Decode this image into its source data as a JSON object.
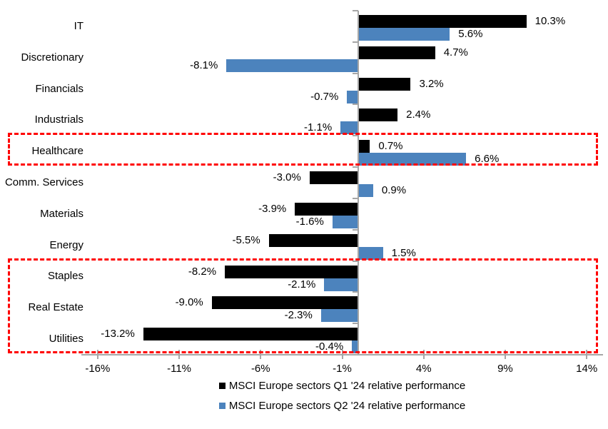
{
  "chart_data": {
    "type": "bar",
    "orientation": "horizontal",
    "title": "",
    "categories": [
      "IT",
      "Discretionary",
      "Financials",
      "Industrials",
      "Healthcare",
      "Comm. Services",
      "Materials",
      "Energy",
      "Staples",
      "Real Estate",
      "Utilities"
    ],
    "series": [
      {
        "name": "MSCI Europe sectors Q1 '24 relative performance",
        "color": "#000000",
        "values": [
          10.3,
          4.7,
          3.2,
          2.4,
          0.7,
          -3.0,
          -3.9,
          -5.5,
          -8.2,
          -9.0,
          -13.2
        ]
      },
      {
        "name": "MSCI Europe sectors Q2 '24 relative performance",
        "color": "#4c83bd",
        "values": [
          5.6,
          -8.1,
          -0.7,
          -1.1,
          6.6,
          0.9,
          -1.6,
          1.5,
          -2.1,
          -2.3,
          -0.4
        ]
      }
    ],
    "data_labels": [
      [
        "10.3%",
        "4.7%",
        "3.2%",
        "2.4%",
        "0.7%",
        "-3.0%",
        "-3.9%",
        "-5.5%",
        "-8.2%",
        "-9.0%",
        "-13.2%"
      ],
      [
        "5.6%",
        "-8.1%",
        "-0.7%",
        "-1.1%",
        "6.6%",
        "0.9%",
        "-1.6%",
        "1.5%",
        "-2.1%",
        "-2.3%",
        "-0.4%"
      ]
    ],
    "x_tick_labels": [
      "-16%",
      "-11%",
      "-6%",
      "-1%",
      "4%",
      "9%",
      "14%"
    ],
    "x_tick_values": [
      -16,
      -11,
      -6,
      -1,
      4,
      9,
      14
    ],
    "xlim": [
      -17,
      15
    ],
    "grid": "off",
    "legend_position": "bottom-center",
    "axis_color": "#a6a6a6",
    "highlight_color": "#ff0000",
    "highlights": [
      {
        "start_category": "Healthcare",
        "end_category": "Healthcare"
      },
      {
        "start_category": "Staples",
        "end_category": "Utilities"
      }
    ]
  }
}
